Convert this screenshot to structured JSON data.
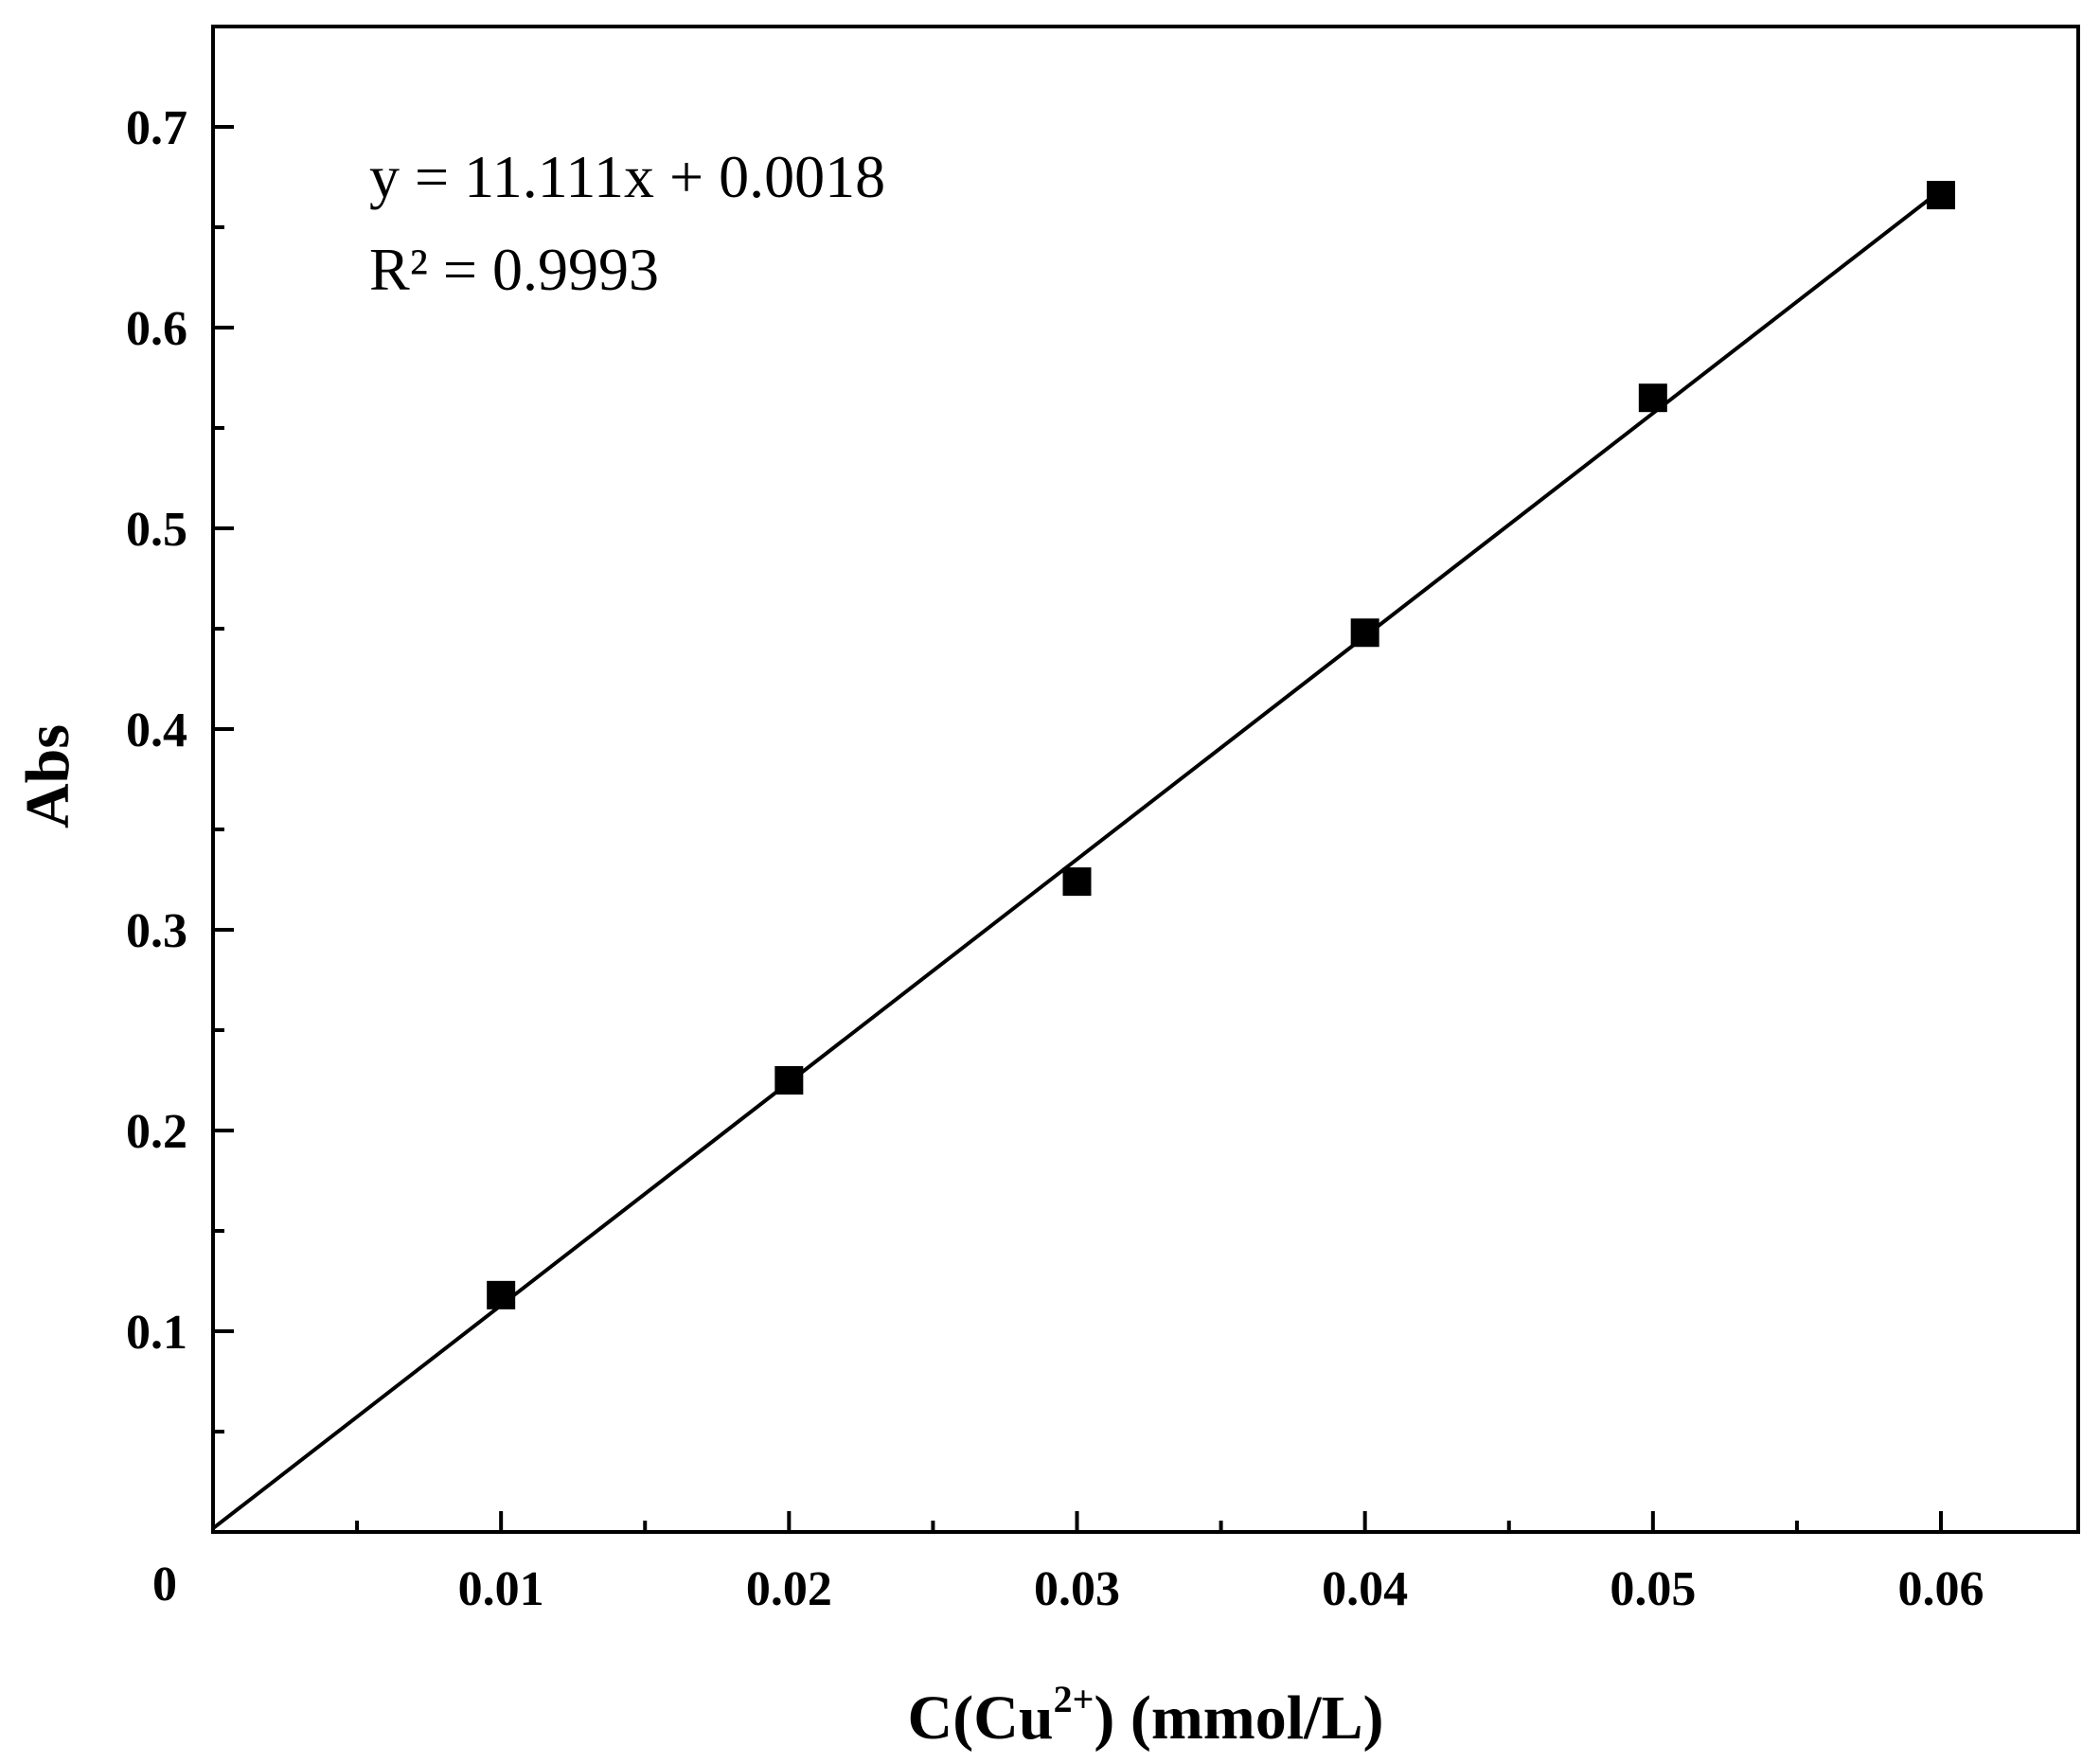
{
  "chart_data": {
    "type": "scatter",
    "title": "",
    "xlabel_main": "C(Cu",
    "xlabel_sup": "2+",
    "xlabel_end": ") (mmol/L)",
    "ylabel": "Abs",
    "xlim": [
      0,
      0.065
    ],
    "ylim": [
      0,
      0.75
    ],
    "x_ticks": [
      "0.01",
      "0.02",
      "0.03",
      "0.04",
      "0.05",
      "0.06"
    ],
    "x_tick_values": [
      0.01,
      0.02,
      0.03,
      0.04,
      0.05,
      0.06
    ],
    "y_ticks": [
      "0.1",
      "0.2",
      "0.3",
      "0.4",
      "0.5",
      "0.6",
      "0.7"
    ],
    "y_tick_values": [
      0.1,
      0.2,
      0.3,
      0.4,
      0.5,
      0.6,
      0.7
    ],
    "origin_label": "0",
    "grid": false,
    "series": [
      {
        "x": [
          0.01,
          0.02,
          0.03,
          0.04,
          0.05,
          0.06
        ],
        "y": [
          0.118,
          0.225,
          0.324,
          0.448,
          0.565,
          0.666
        ],
        "marker": "square",
        "color": "#000000"
      }
    ],
    "fit": {
      "slope": 11.111,
      "intercept": 0.0018,
      "x_range": [
        0,
        0.06
      ],
      "color": "#000000"
    },
    "annotations": {
      "equation": "y = 11.111x + 0.0018",
      "r2": "R² = 0.9993"
    }
  }
}
